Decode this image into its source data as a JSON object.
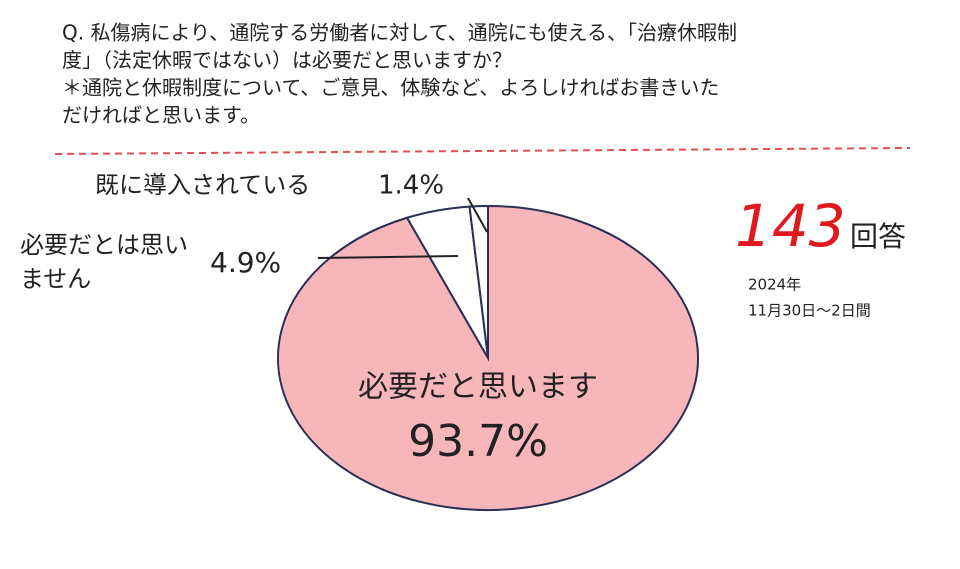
{
  "chart_data": {
    "type": "pie",
    "title": [
      "Q. 私傷病により、通院する労働者に対して、通院にも使える、「治療休暇制",
      "度」（法定休暇ではない）は必要だと思いますか？",
      "＊通院と休暇制度について、ご意見、体験など、よろしければお書きいた",
      "だければと思います。"
    ],
    "categories": [
      "必要だと思います",
      "必要だとは思いません",
      "既に導入されている"
    ],
    "values": [
      93.7,
      4.9,
      1.4
    ],
    "value_labels": [
      "93.7%",
      "4.9%",
      "1.4%"
    ],
    "colors": [
      "#f7b7ba",
      "#ffffff",
      "#ffffff"
    ],
    "annotations": {
      "count": "143",
      "count_unit": "回答",
      "year": "2024年",
      "period": "11月30日〜2日間"
    }
  }
}
